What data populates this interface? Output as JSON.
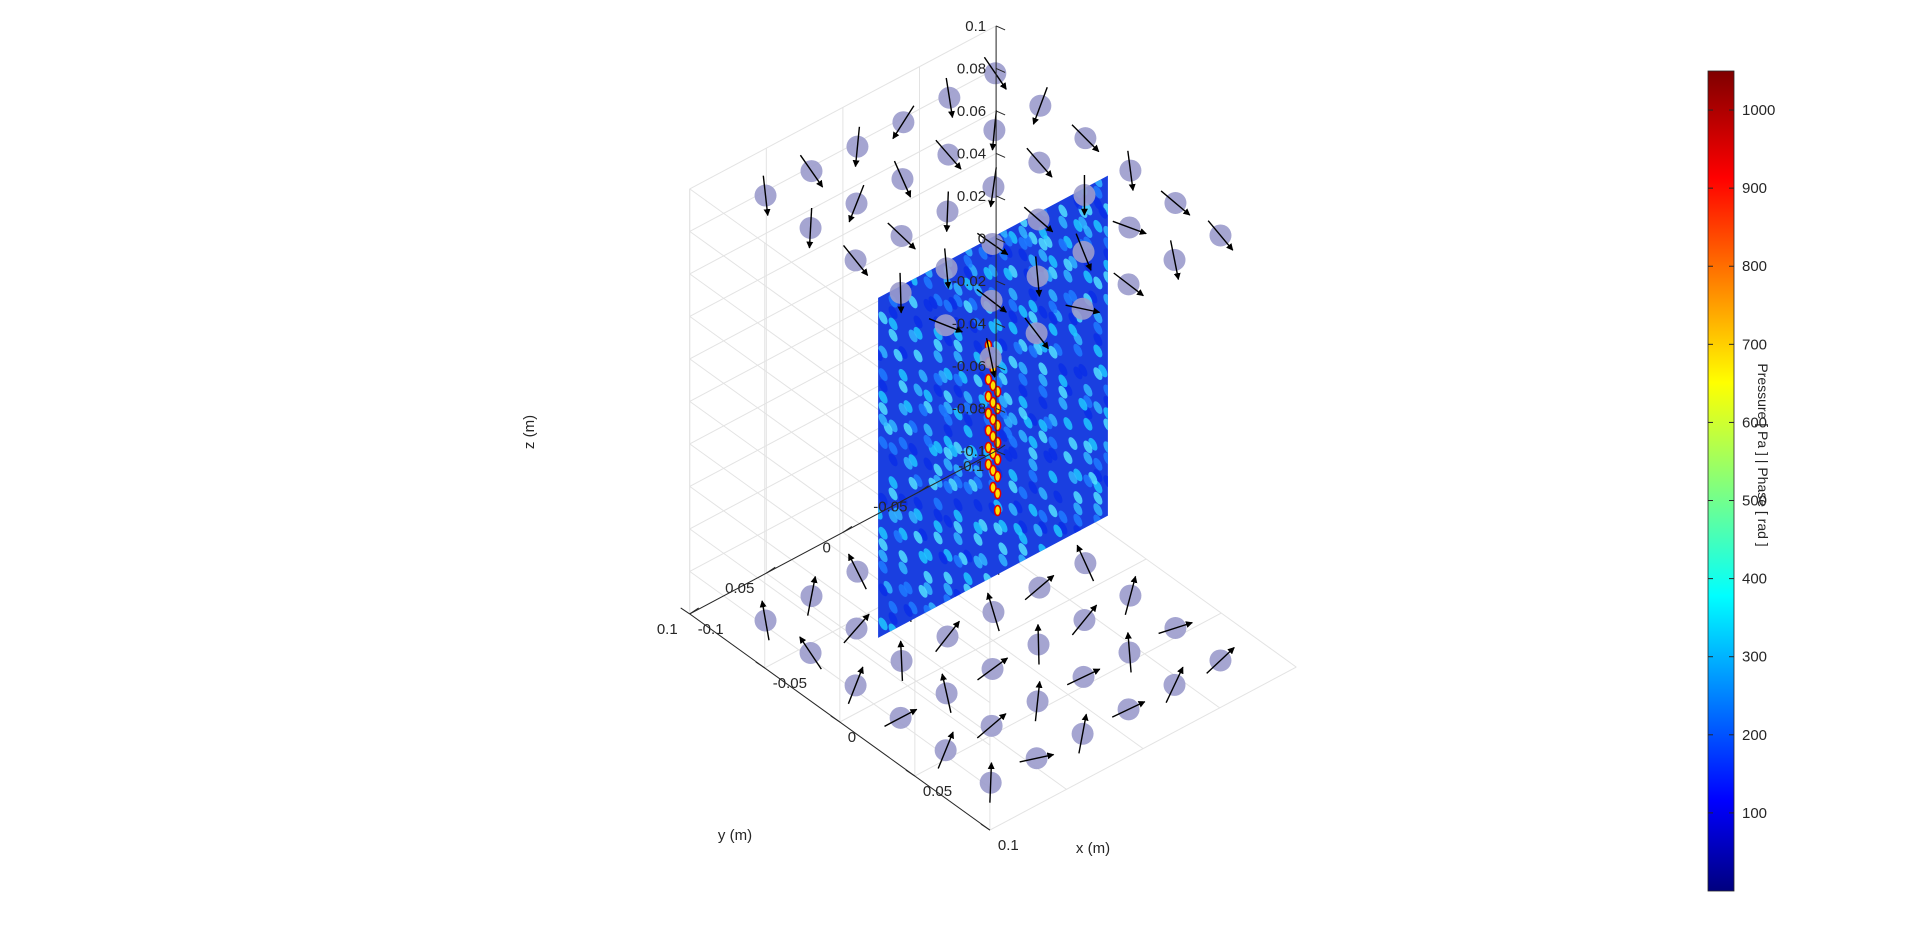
{
  "chart_data": {
    "type": "3d-field-slice",
    "xlabel": "x (m)",
    "ylabel": "y (m)",
    "zlabel": "z (m)",
    "xlim": [
      -0.1,
      0.1
    ],
    "ylim": [
      -0.1,
      0.1
    ],
    "zlim": [
      -0.1,
      0.1
    ],
    "x_ticks": [
      "-0.1",
      "-0.05",
      "0",
      "0.05",
      "0.1"
    ],
    "y_ticks": [
      "-0.1",
      "-0.05",
      "0",
      "0.05",
      "0.1"
    ],
    "z_ticks": [
      "-0.1",
      "-0.08",
      "-0.06",
      "-0.04",
      "-0.02",
      "0",
      "0.02",
      "0.04",
      "0.06",
      "0.08",
      "0.1"
    ],
    "grid": true,
    "colormap": "jet",
    "colorbar": {
      "label": "Pressure [ Pa ] | Phase [ rad ]",
      "ticks": [
        "100",
        "200",
        "300",
        "400",
        "500",
        "600",
        "700",
        "800",
        "900",
        "1000"
      ],
      "range": [
        0,
        1050
      ],
      "placement": "right"
    },
    "slice_plane": "x = 0",
    "slice_extent": {
      "y": [
        -0.075,
        0.075
      ],
      "z": [
        -0.07,
        0.09
      ]
    },
    "transducer_arrays": [
      {
        "plane": "top",
        "z": 0.1,
        "xs": [
          -0.075,
          -0.045,
          -0.015,
          0.015,
          0.045,
          0.075
        ],
        "ys": [
          -0.075,
          -0.045,
          -0.015,
          0.015,
          0.045,
          0.075
        ]
      },
      {
        "plane": "bottom",
        "z": -0.1,
        "xs": [
          -0.075,
          -0.045,
          -0.015,
          0.015,
          0.045,
          0.075
        ],
        "ys": [
          -0.075,
          -0.045,
          -0.015,
          0.015,
          0.045,
          0.075
        ]
      }
    ],
    "transducer_color": "#9b9bcc",
    "arrow_color": "#000000"
  }
}
